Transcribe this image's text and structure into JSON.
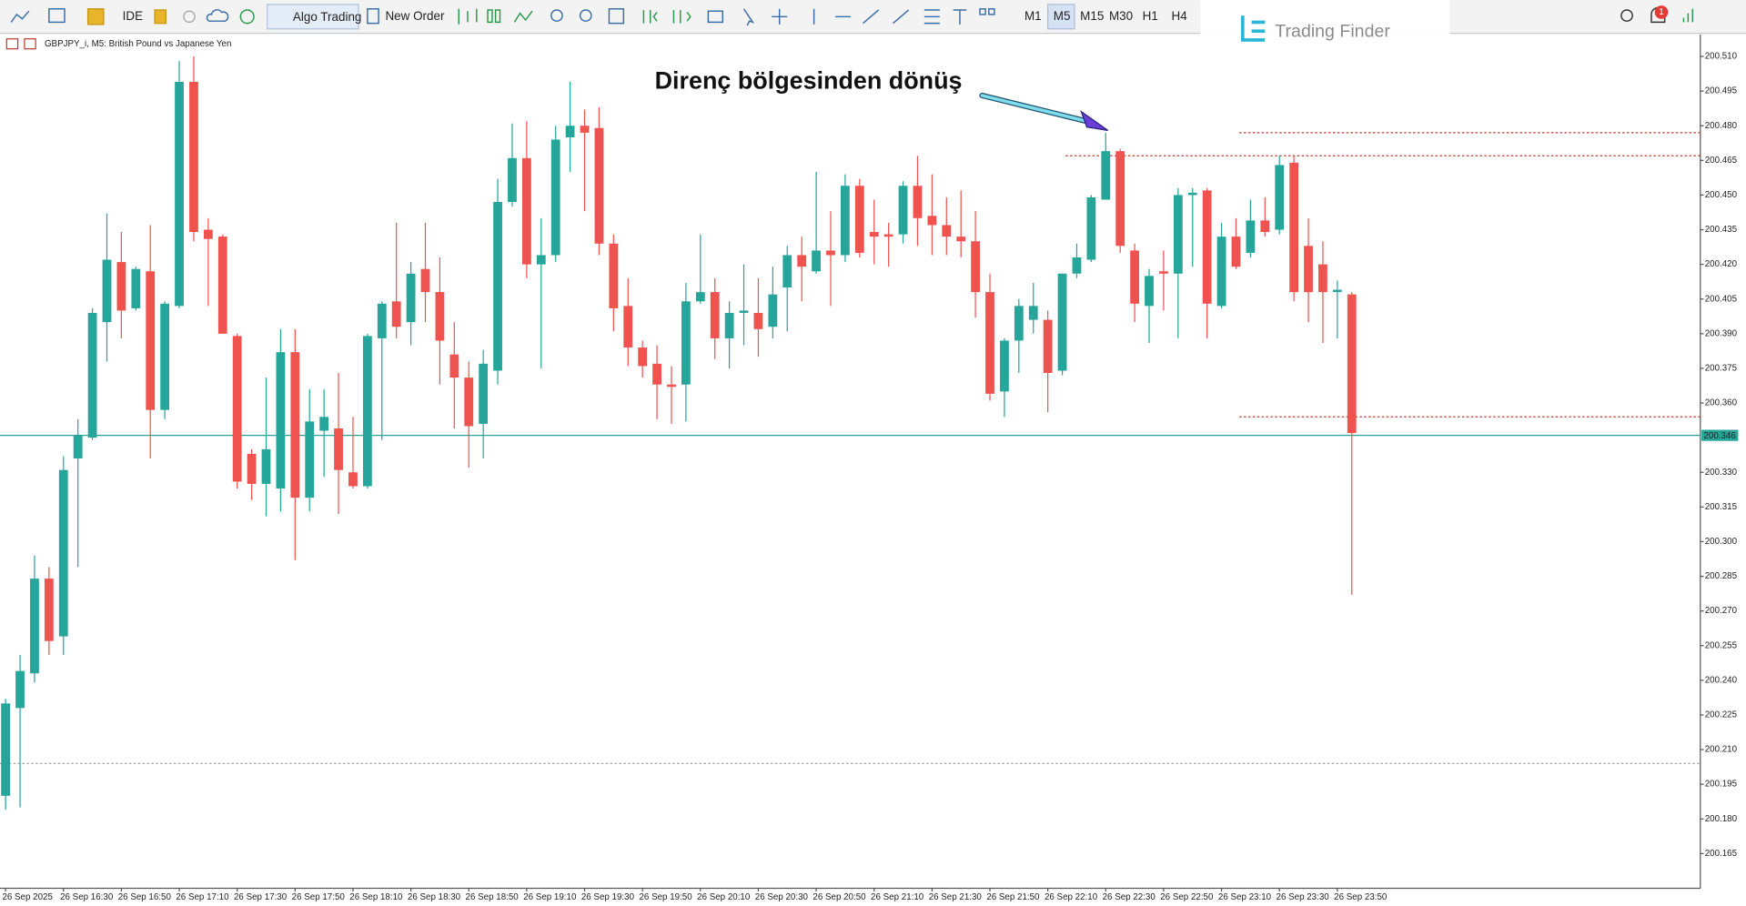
{
  "toolbar": {
    "ide": "IDE",
    "algo_trading": "Algo Trading",
    "new_order": "New Order",
    "timeframes": [
      "M1",
      "M5",
      "M15",
      "M30",
      "H1",
      "H4"
    ],
    "notification_count": "1"
  },
  "watermark": "Trading Finder",
  "chart_data": {
    "type": "candlestick",
    "title": "GBPJPY_i, M5:  British Pound vs Japanese Yen",
    "annotation": "Direnç bölgesinden dönüş",
    "up_color": "#26a69a",
    "down_color": "#ef5350",
    "categories": [
      "26 Sep 2025",
      null,
      null,
      null,
      "26 Sep 16:30",
      null,
      null,
      null,
      "26 Sep 16:50",
      null,
      null,
      null,
      "26 Sep 17:10",
      null,
      null,
      null,
      "26 Sep 17:30",
      null,
      null,
      null,
      "26 Sep 17:50",
      null,
      null,
      null,
      "26 Sep 18:10",
      null,
      null,
      null,
      "26 Sep 18:30",
      null,
      null,
      null,
      "26 Sep 18:50",
      null,
      null,
      null,
      "26 Sep 19:10",
      null,
      null,
      null,
      "26 Sep 19:30",
      null,
      null,
      null,
      "26 Sep 19:50",
      null,
      null,
      null,
      "26 Sep 20:10",
      null,
      null,
      null,
      "26 Sep 20:30",
      null,
      null,
      null,
      "26 Sep 20:50",
      null,
      null,
      null,
      "26 Sep 21:10",
      null,
      null,
      null,
      "26 Sep 21:30",
      null,
      null,
      null,
      "26 Sep 21:50",
      null,
      null,
      null,
      "26 Sep 22:10",
      null,
      null,
      null,
      "26 Sep 22:30",
      null,
      null,
      null,
      "26 Sep 22:50",
      null,
      null,
      null,
      "26 Sep 23:10",
      null,
      null,
      null,
      "26 Sep 23:30",
      null,
      null,
      null,
      "26 Sep 23:50",
      null
    ],
    "open": [
      200.19,
      200.228,
      200.243,
      200.284,
      200.259,
      200.336,
      200.345,
      200.395,
      200.421,
      200.401,
      200.417,
      200.357,
      200.402,
      200.499,
      200.435,
      200.432,
      200.389,
      200.338,
      200.325,
      200.323,
      200.382,
      200.319,
      200.348,
      200.349,
      200.33,
      200.324,
      200.388,
      200.404,
      200.395,
      200.418,
      200.408,
      200.381,
      200.371,
      200.351,
      200.374,
      200.447,
      200.466,
      200.42,
      200.424,
      200.475,
      200.48,
      200.479,
      200.429,
      200.402,
      200.384,
      200.377,
      200.368,
      200.368,
      200.404,
      200.408,
      200.388,
      200.399,
      200.399,
      200.393,
      200.41,
      200.424,
      200.417,
      200.426,
      200.424,
      200.454,
      200.434,
      200.433,
      200.433,
      200.454,
      200.441,
      200.437,
      200.432,
      200.43,
      200.408,
      200.365,
      200.387,
      200.396,
      200.396,
      200.374,
      200.416,
      200.422,
      200.448,
      200.469,
      200.426,
      200.402,
      200.417,
      200.416,
      200.45,
      200.452,
      200.402,
      200.432,
      200.425,
      200.439,
      200.435,
      200.464,
      200.428,
      200.42,
      200.408,
      200.407
    ],
    "high": [
      200.232,
      200.251,
      200.294,
      200.289,
      200.337,
      200.353,
      200.401,
      200.442,
      200.434,
      200.419,
      200.437,
      200.404,
      200.508,
      200.51,
      200.44,
      200.433,
      200.39,
      200.34,
      200.371,
      200.392,
      200.392,
      200.366,
      200.366,
      200.373,
      200.354,
      200.39,
      200.404,
      200.438,
      200.421,
      200.438,
      200.423,
      200.395,
      200.378,
      200.383,
      200.457,
      200.481,
      200.482,
      200.44,
      200.48,
      200.499,
      200.487,
      200.488,
      200.433,
      200.414,
      200.387,
      200.385,
      200.376,
      200.412,
      200.433,
      200.414,
      200.404,
      200.42,
      200.414,
      200.419,
      200.428,
      200.432,
      200.46,
      200.443,
      200.459,
      200.457,
      200.448,
      200.438,
      200.456,
      200.467,
      200.459,
      200.449,
      200.452,
      200.443,
      200.416,
      200.388,
      200.405,
      200.412,
      200.4,
      200.416,
      200.429,
      200.45,
      200.477,
      200.47,
      200.429,
      200.418,
      200.426,
      200.453,
      200.453,
      200.453,
      200.438,
      200.44,
      200.448,
      200.449,
      200.467,
      200.467,
      200.44,
      200.43,
      200.413,
      200.408
    ],
    "low": [
      200.184,
      200.185,
      200.239,
      200.251,
      200.251,
      200.289,
      200.344,
      200.378,
      200.388,
      200.4,
      200.336,
      200.353,
      200.401,
      200.43,
      200.402,
      200.39,
      200.323,
      200.318,
      200.311,
      200.313,
      200.292,
      200.313,
      200.328,
      200.312,
      200.323,
      200.323,
      200.344,
      200.388,
      200.385,
      200.395,
      200.368,
      200.349,
      200.332,
      200.336,
      200.368,
      200.445,
      200.414,
      200.375,
      200.421,
      200.46,
      200.443,
      200.424,
      200.391,
      200.376,
      200.371,
      200.353,
      200.351,
      200.352,
      200.403,
      200.379,
      200.375,
      200.385,
      200.38,
      200.388,
      200.391,
      200.404,
      200.416,
      200.402,
      200.421,
      200.423,
      200.42,
      200.419,
      200.429,
      200.428,
      200.424,
      200.424,
      200.423,
      200.397,
      200.361,
      200.354,
      200.373,
      200.39,
      200.356,
      200.372,
      200.414,
      200.421,
      200.448,
      200.425,
      200.395,
      200.386,
      200.4,
      200.388,
      200.419,
      200.388,
      200.401,
      200.418,
      200.423,
      200.432,
      200.433,
      200.404,
      200.395,
      200.386,
      200.388,
      200.277
    ],
    "close": [
      200.23,
      200.244,
      200.284,
      200.257,
      200.331,
      200.346,
      200.399,
      200.422,
      200.4,
      200.418,
      200.357,
      200.403,
      200.499,
      200.434,
      200.431,
      200.39,
      200.326,
      200.325,
      200.34,
      200.382,
      200.319,
      200.352,
      200.354,
      200.331,
      200.324,
      200.389,
      200.403,
      200.393,
      200.416,
      200.408,
      200.387,
      200.371,
      200.35,
      200.377,
      200.447,
      200.466,
      200.42,
      200.424,
      200.474,
      200.48,
      200.477,
      200.429,
      200.401,
      200.384,
      200.376,
      200.368,
      200.367,
      200.404,
      200.408,
      200.388,
      200.399,
      200.4,
      200.392,
      200.407,
      200.424,
      200.419,
      200.426,
      200.424,
      200.454,
      200.425,
      200.432,
      200.432,
      200.454,
      200.44,
      200.437,
      200.432,
      200.43,
      200.408,
      200.364,
      200.387,
      200.402,
      200.402,
      200.373,
      200.416,
      200.423,
      200.449,
      200.469,
      200.428,
      200.403,
      200.415,
      200.416,
      200.45,
      200.451,
      200.403,
      200.432,
      200.419,
      200.439,
      200.434,
      200.463,
      200.408,
      200.408,
      200.408,
      200.409,
      200.347
    ],
    "ylim": [
      200.15,
      200.52
    ],
    "yticks": [
      {
        "value": 200.51,
        "label": "200.510"
      },
      200.495,
      {
        "value": 200.48,
        "label": "200.480"
      },
      200.465,
      {
        "value": 200.45,
        "label": "200.450"
      },
      200.435,
      {
        "value": 200.42,
        "label": "200.420"
      },
      200.405,
      {
        "value": 200.39,
        "label": "200.390"
      },
      200.375,
      {
        "value": 200.36,
        "label": "200.360"
      },
      {
        "value": 200.33,
        "label": "200.330"
      },
      200.315,
      {
        "value": 200.3,
        "label": "200.300"
      },
      200.285,
      {
        "value": 200.27,
        "label": "200.270"
      },
      200.255,
      {
        "value": 200.24,
        "label": "200.240"
      },
      200.225,
      {
        "value": 200.21,
        "label": "200.210"
      },
      200.195,
      {
        "value": 200.18,
        "label": "200.180"
      },
      200.165
    ],
    "current_price": 200.346,
    "current_price_color": "#26a69a",
    "levels": [
      {
        "value": 200.467,
        "color": "#c0392b"
      },
      {
        "value": 200.477,
        "color": "#c0392b"
      },
      {
        "value": 200.354,
        "color": "#c0392b"
      },
      {
        "value": 200.204,
        "color": "#9a9a9a"
      }
    ]
  }
}
